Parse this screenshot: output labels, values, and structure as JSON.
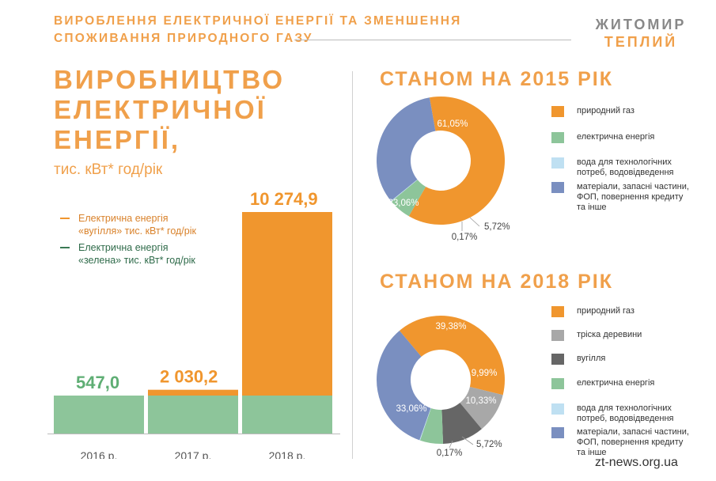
{
  "header": {
    "line1": "Вироблення електричної енергії та зменшення",
    "line2": "споживання природного газу"
  },
  "logo": {
    "line1": "ЖИТОМИР",
    "line2": "ТЕПЛИЙ"
  },
  "main_title": {
    "line1": "ВИРОБНИЦТВО",
    "line2": "ЕЛЕКТРИЧНОЇ",
    "line3": "ЕНЕРГІЇ,",
    "unit": "тис. кВт* год/рік"
  },
  "legend": [
    {
      "line1": "Електрична енергія",
      "line2": "«вугілля» тис. кВт* год/рік",
      "color": "#f0962e"
    },
    {
      "line1": "Електрична енергія",
      "line2": "«зелена» тис. кВт* год/рік",
      "color": "#3a7a55"
    }
  ],
  "pie_2015_title": "СТАНОМ НА 2015 РІК",
  "pie_2018_title": "СТАНОМ НА 2018 РІК",
  "legend_2015": [
    {
      "label": "природний газ",
      "color": "#f0962e"
    },
    {
      "label": "електрична енергія",
      "color": "#8dc59a"
    },
    {
      "label": "вода для технологічних\nпотреб, водовідведення",
      "color": "#bfe0f2"
    },
    {
      "label": "матеріали, запасні частини,\nФОП, повернення кредиту\nта інше",
      "color": "#7a8fc0"
    }
  ],
  "legend_2018": [
    {
      "label": "природний газ",
      "color": "#f0962e"
    },
    {
      "label": "тріска деревини",
      "color": "#a8a8a8"
    },
    {
      "label": "вугілля",
      "color": "#666666"
    },
    {
      "label": "електрична енергія",
      "color": "#8dc59a"
    },
    {
      "label": "вода для технологічних\nпотреб, водовідведення",
      "color": "#bfe0f2"
    },
    {
      "label": "матеріали, запасні частини,\nФОП, повернення кредиту\nта інше",
      "color": "#7a8fc0"
    }
  ],
  "source": "zt-news.org.ua",
  "chart_data": [
    {
      "type": "bar",
      "categories": [
        "2016 р.",
        "2017 р.",
        "2018 р."
      ],
      "series": [
        {
          "name": "Електрична енергія «зелена» тис. кВт* год/рік",
          "values": [
            547.0,
            547.0,
            547.0
          ],
          "color": "#8dc59a"
        },
        {
          "name": "Електрична енергія «вугілля» тис. кВт* год/рік",
          "values": [
            0,
            1483.2,
            9727.9
          ],
          "color": "#f0962e"
        }
      ],
      "totals_labels": [
        "547,0",
        "2 030,2",
        "10 274,9"
      ],
      "stacked": true
    },
    {
      "type": "pie",
      "title": "СТАНОМ НА 2015 РІК",
      "labels": [
        "природний газ",
        "електрична енергія",
        "вода для технологічних потреб, водовідведення",
        "матеріали, запасні частини, ФОП, повернення кредиту та інше"
      ],
      "values": [
        61.05,
        5.72,
        0.17,
        33.06
      ],
      "value_labels": [
        "61,05%",
        "5,72%",
        "0,17%",
        "33,06%"
      ],
      "colors": [
        "#f0962e",
        "#8dc59a",
        "#bfe0f2",
        "#7a8fc0"
      ]
    },
    {
      "type": "pie",
      "title": "СТАНОМ НА 2018 РІК",
      "labels": [
        "природний газ",
        "тріска деревини",
        "вугілля",
        "електрична енергія",
        "вода для технологічних потреб, водовідведення",
        "матеріали, запасні частини, ФОП, повернення кредиту та інше"
      ],
      "values": [
        39.38,
        9.99,
        10.33,
        5.72,
        0.17,
        33.06
      ],
      "value_labels": [
        "39,38%",
        "9,99%",
        "10,33%",
        "5,72%",
        "0,17%",
        "33,06%"
      ],
      "colors": [
        "#f0962e",
        "#a8a8a8",
        "#666666",
        "#8dc59a",
        "#bfe0f2",
        "#7a8fc0"
      ]
    }
  ]
}
